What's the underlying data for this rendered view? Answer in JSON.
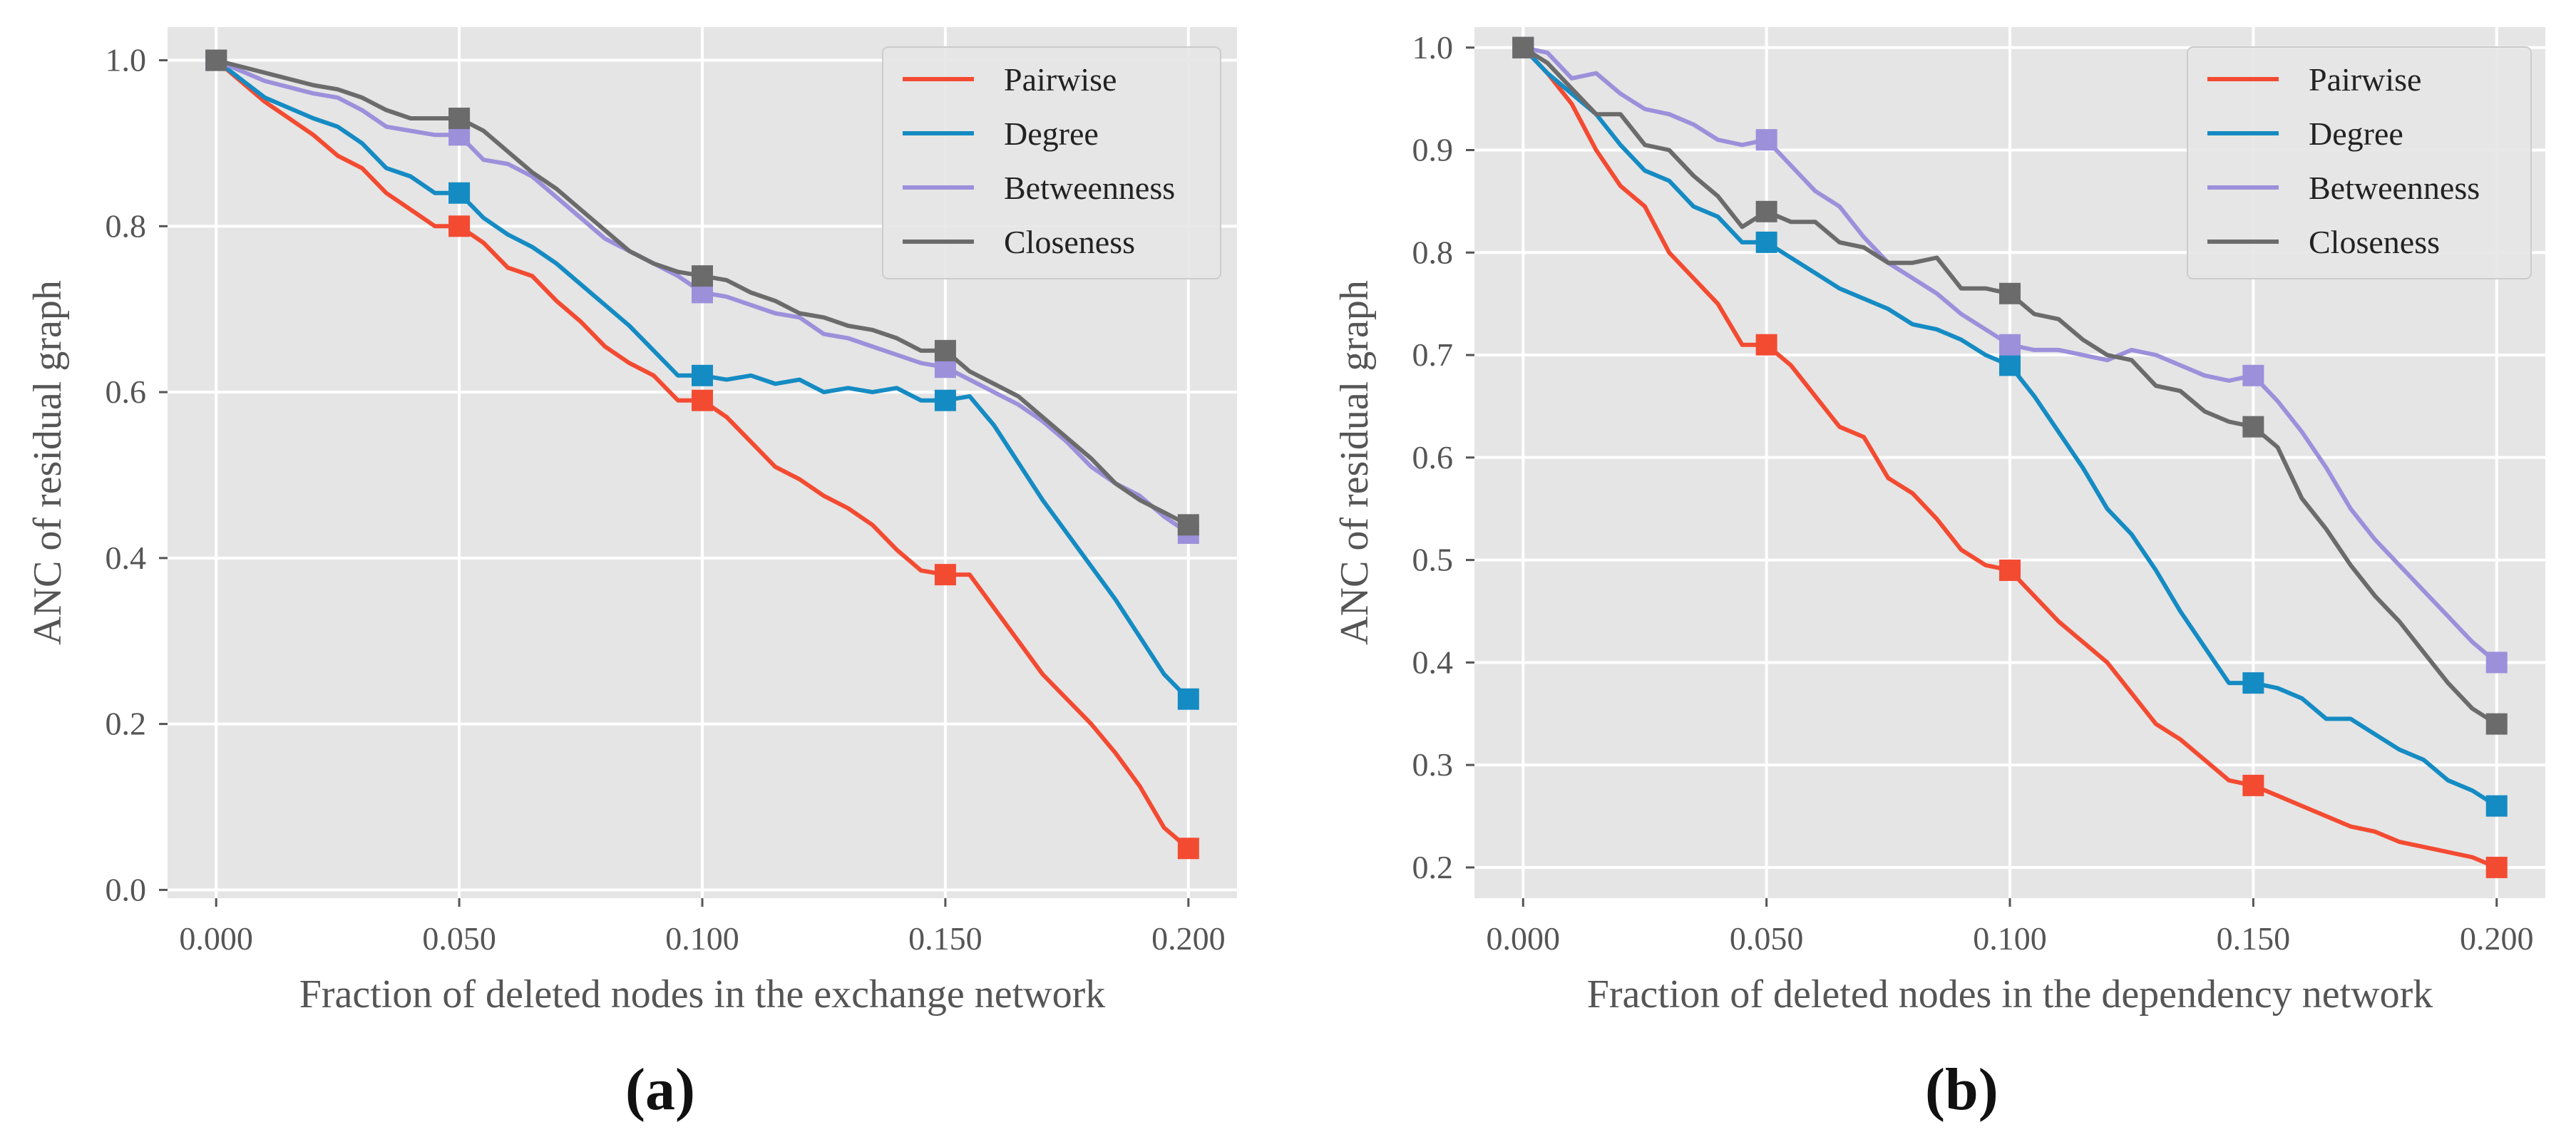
{
  "chart_data": [
    {
      "type": "line",
      "panel_label": "(a)",
      "xlabel": "Fraction of deleted nodes in the exchange network",
      "ylabel": "ANC of residual graph",
      "xlim": [
        -0.01,
        0.21
      ],
      "ylim": [
        -0.01,
        1.04
      ],
      "xticks": [
        0.0,
        0.05,
        0.1,
        0.15,
        0.2
      ],
      "xtick_labels": [
        "0.000",
        "0.050",
        "0.100",
        "0.150",
        "0.200"
      ],
      "yticks": [
        0.0,
        0.2,
        0.4,
        0.6,
        0.8,
        1.0
      ],
      "ytick_labels": [
        "0.0",
        "0.2",
        "0.4",
        "0.6",
        "0.8",
        "1.0"
      ],
      "legend_position": "top-right",
      "grid": true,
      "marker_x": [
        0.0,
        0.05,
        0.1,
        0.15,
        0.2
      ],
      "series": [
        {
          "name": "Pairwise",
          "color": "#f34b32",
          "x": [
            0,
            0.01,
            0.02,
            0.025,
            0.03,
            0.035,
            0.04,
            0.045,
            0.05,
            0.055,
            0.06,
            0.065,
            0.07,
            0.075,
            0.08,
            0.085,
            0.09,
            0.095,
            0.1,
            0.105,
            0.11,
            0.115,
            0.12,
            0.125,
            0.13,
            0.135,
            0.14,
            0.145,
            0.15,
            0.155,
            0.16,
            0.165,
            0.17,
            0.175,
            0.18,
            0.185,
            0.19,
            0.195,
            0.2
          ],
          "y": [
            1.0,
            0.95,
            0.91,
            0.885,
            0.87,
            0.84,
            0.82,
            0.8,
            0.8,
            0.78,
            0.75,
            0.74,
            0.71,
            0.685,
            0.655,
            0.635,
            0.62,
            0.59,
            0.59,
            0.57,
            0.54,
            0.51,
            0.495,
            0.475,
            0.46,
            0.44,
            0.41,
            0.385,
            0.38,
            0.38,
            0.34,
            0.3,
            0.26,
            0.23,
            0.2,
            0.165,
            0.125,
            0.075,
            0.05
          ]
        },
        {
          "name": "Degree",
          "color": "#158bc3",
          "x": [
            0,
            0.01,
            0.02,
            0.025,
            0.03,
            0.035,
            0.04,
            0.045,
            0.05,
            0.055,
            0.06,
            0.065,
            0.07,
            0.075,
            0.08,
            0.085,
            0.09,
            0.095,
            0.1,
            0.105,
            0.11,
            0.115,
            0.12,
            0.125,
            0.13,
            0.135,
            0.14,
            0.145,
            0.15,
            0.155,
            0.16,
            0.165,
            0.17,
            0.175,
            0.18,
            0.185,
            0.19,
            0.195,
            0.2
          ],
          "y": [
            1.0,
            0.955,
            0.93,
            0.92,
            0.9,
            0.87,
            0.86,
            0.84,
            0.84,
            0.81,
            0.79,
            0.775,
            0.755,
            0.73,
            0.705,
            0.68,
            0.65,
            0.62,
            0.62,
            0.615,
            0.62,
            0.61,
            0.615,
            0.6,
            0.605,
            0.6,
            0.605,
            0.59,
            0.59,
            0.595,
            0.56,
            0.515,
            0.47,
            0.43,
            0.39,
            0.35,
            0.305,
            0.26,
            0.23
          ]
        },
        {
          "name": "Betweenness",
          "color": "#9c90db",
          "x": [
            0,
            0.01,
            0.02,
            0.025,
            0.03,
            0.035,
            0.04,
            0.045,
            0.05,
            0.055,
            0.06,
            0.065,
            0.07,
            0.075,
            0.08,
            0.085,
            0.09,
            0.095,
            0.1,
            0.105,
            0.11,
            0.115,
            0.12,
            0.125,
            0.13,
            0.135,
            0.14,
            0.145,
            0.15,
            0.155,
            0.16,
            0.165,
            0.17,
            0.175,
            0.18,
            0.185,
            0.19,
            0.195,
            0.2
          ],
          "y": [
            1.0,
            0.975,
            0.96,
            0.955,
            0.94,
            0.92,
            0.915,
            0.91,
            0.91,
            0.88,
            0.875,
            0.86,
            0.835,
            0.81,
            0.785,
            0.77,
            0.755,
            0.74,
            0.72,
            0.715,
            0.705,
            0.695,
            0.69,
            0.67,
            0.665,
            0.655,
            0.645,
            0.635,
            0.63,
            0.615,
            0.6,
            0.585,
            0.565,
            0.54,
            0.51,
            0.49,
            0.475,
            0.45,
            0.43
          ]
        },
        {
          "name": "Closeness",
          "color": "#6b6b6b",
          "x": [
            0,
            0.01,
            0.02,
            0.025,
            0.03,
            0.035,
            0.04,
            0.045,
            0.05,
            0.055,
            0.06,
            0.065,
            0.07,
            0.075,
            0.08,
            0.085,
            0.09,
            0.095,
            0.1,
            0.105,
            0.11,
            0.115,
            0.12,
            0.125,
            0.13,
            0.135,
            0.14,
            0.145,
            0.15,
            0.155,
            0.16,
            0.165,
            0.17,
            0.175,
            0.18,
            0.185,
            0.19,
            0.195,
            0.2
          ],
          "y": [
            1.0,
            0.985,
            0.97,
            0.965,
            0.955,
            0.94,
            0.93,
            0.93,
            0.93,
            0.915,
            0.89,
            0.865,
            0.845,
            0.82,
            0.795,
            0.77,
            0.755,
            0.745,
            0.74,
            0.735,
            0.72,
            0.71,
            0.695,
            0.69,
            0.68,
            0.675,
            0.665,
            0.65,
            0.65,
            0.625,
            0.61,
            0.595,
            0.57,
            0.545,
            0.52,
            0.49,
            0.47,
            0.455,
            0.44
          ]
        }
      ]
    },
    {
      "type": "line",
      "panel_label": "(b)",
      "xlabel": "Fraction of deleted nodes in the dependency network",
      "ylabel": "ANC of residual graph",
      "xlim": [
        -0.01,
        0.21
      ],
      "ylim": [
        0.17,
        1.02
      ],
      "xticks": [
        0.0,
        0.05,
        0.1,
        0.15,
        0.2
      ],
      "xtick_labels": [
        "0.000",
        "0.050",
        "0.100",
        "0.150",
        "0.200"
      ],
      "yticks": [
        0.2,
        0.3,
        0.4,
        0.5,
        0.6,
        0.7,
        0.8,
        0.9,
        1.0
      ],
      "ytick_labels": [
        "0.2",
        "0.3",
        "0.4",
        "0.5",
        "0.6",
        "0.7",
        "0.8",
        "0.9",
        "1.0"
      ],
      "legend_position": "top-right",
      "grid": true,
      "marker_x": [
        0.0,
        0.05,
        0.1,
        0.15,
        0.2
      ],
      "series": [
        {
          "name": "Pairwise",
          "color": "#f34b32",
          "x": [
            0,
            0.005,
            0.01,
            0.015,
            0.02,
            0.025,
            0.03,
            0.035,
            0.04,
            0.045,
            0.05,
            0.055,
            0.06,
            0.065,
            0.07,
            0.075,
            0.08,
            0.085,
            0.09,
            0.095,
            0.1,
            0.105,
            0.11,
            0.115,
            0.12,
            0.125,
            0.13,
            0.135,
            0.14,
            0.145,
            0.15,
            0.155,
            0.16,
            0.165,
            0.17,
            0.175,
            0.18,
            0.185,
            0.19,
            0.195,
            0.2
          ],
          "y": [
            1.0,
            0.975,
            0.945,
            0.9,
            0.865,
            0.845,
            0.8,
            0.775,
            0.75,
            0.71,
            0.71,
            0.69,
            0.66,
            0.63,
            0.62,
            0.58,
            0.565,
            0.54,
            0.51,
            0.495,
            0.49,
            0.465,
            0.44,
            0.42,
            0.4,
            0.37,
            0.34,
            0.325,
            0.305,
            0.285,
            0.28,
            0.27,
            0.26,
            0.25,
            0.24,
            0.235,
            0.225,
            0.22,
            0.215,
            0.21,
            0.2
          ]
        },
        {
          "name": "Degree",
          "color": "#158bc3",
          "x": [
            0,
            0.005,
            0.01,
            0.015,
            0.02,
            0.025,
            0.03,
            0.035,
            0.04,
            0.045,
            0.05,
            0.055,
            0.06,
            0.065,
            0.07,
            0.075,
            0.08,
            0.085,
            0.09,
            0.095,
            0.1,
            0.105,
            0.11,
            0.115,
            0.12,
            0.125,
            0.13,
            0.135,
            0.14,
            0.145,
            0.15,
            0.155,
            0.16,
            0.165,
            0.17,
            0.175,
            0.18,
            0.185,
            0.19,
            0.195,
            0.2
          ],
          "y": [
            1.0,
            0.975,
            0.955,
            0.935,
            0.905,
            0.88,
            0.87,
            0.845,
            0.835,
            0.81,
            0.81,
            0.795,
            0.78,
            0.765,
            0.755,
            0.745,
            0.73,
            0.725,
            0.715,
            0.7,
            0.69,
            0.66,
            0.625,
            0.59,
            0.55,
            0.525,
            0.49,
            0.45,
            0.415,
            0.38,
            0.38,
            0.375,
            0.365,
            0.345,
            0.345,
            0.33,
            0.315,
            0.305,
            0.285,
            0.275,
            0.26
          ]
        },
        {
          "name": "Betweenness",
          "color": "#9c90db",
          "x": [
            0,
            0.005,
            0.01,
            0.015,
            0.02,
            0.025,
            0.03,
            0.035,
            0.04,
            0.045,
            0.05,
            0.055,
            0.06,
            0.065,
            0.07,
            0.075,
            0.08,
            0.085,
            0.09,
            0.095,
            0.1,
            0.105,
            0.11,
            0.115,
            0.12,
            0.125,
            0.13,
            0.135,
            0.14,
            0.145,
            0.15,
            0.155,
            0.16,
            0.165,
            0.17,
            0.175,
            0.18,
            0.185,
            0.19,
            0.195,
            0.2
          ],
          "y": [
            1.0,
            0.995,
            0.97,
            0.975,
            0.955,
            0.94,
            0.935,
            0.925,
            0.91,
            0.905,
            0.91,
            0.885,
            0.86,
            0.845,
            0.815,
            0.79,
            0.775,
            0.76,
            0.74,
            0.725,
            0.71,
            0.705,
            0.705,
            0.7,
            0.695,
            0.705,
            0.7,
            0.69,
            0.68,
            0.675,
            0.68,
            0.655,
            0.625,
            0.59,
            0.55,
            0.52,
            0.495,
            0.47,
            0.445,
            0.42,
            0.4
          ]
        },
        {
          "name": "Closeness",
          "color": "#6b6b6b",
          "x": [
            0,
            0.005,
            0.01,
            0.015,
            0.02,
            0.025,
            0.03,
            0.035,
            0.04,
            0.045,
            0.05,
            0.055,
            0.06,
            0.065,
            0.07,
            0.075,
            0.08,
            0.085,
            0.09,
            0.095,
            0.1,
            0.105,
            0.11,
            0.115,
            0.12,
            0.125,
            0.13,
            0.135,
            0.14,
            0.145,
            0.15,
            0.155,
            0.16,
            0.165,
            0.17,
            0.175,
            0.18,
            0.185,
            0.19,
            0.195,
            0.2
          ],
          "y": [
            1.0,
            0.985,
            0.96,
            0.935,
            0.935,
            0.905,
            0.9,
            0.875,
            0.855,
            0.825,
            0.84,
            0.83,
            0.83,
            0.81,
            0.805,
            0.79,
            0.79,
            0.795,
            0.765,
            0.765,
            0.76,
            0.74,
            0.735,
            0.715,
            0.7,
            0.695,
            0.67,
            0.665,
            0.645,
            0.635,
            0.63,
            0.61,
            0.56,
            0.53,
            0.495,
            0.465,
            0.44,
            0.41,
            0.38,
            0.355,
            0.34
          ]
        }
      ]
    }
  ]
}
